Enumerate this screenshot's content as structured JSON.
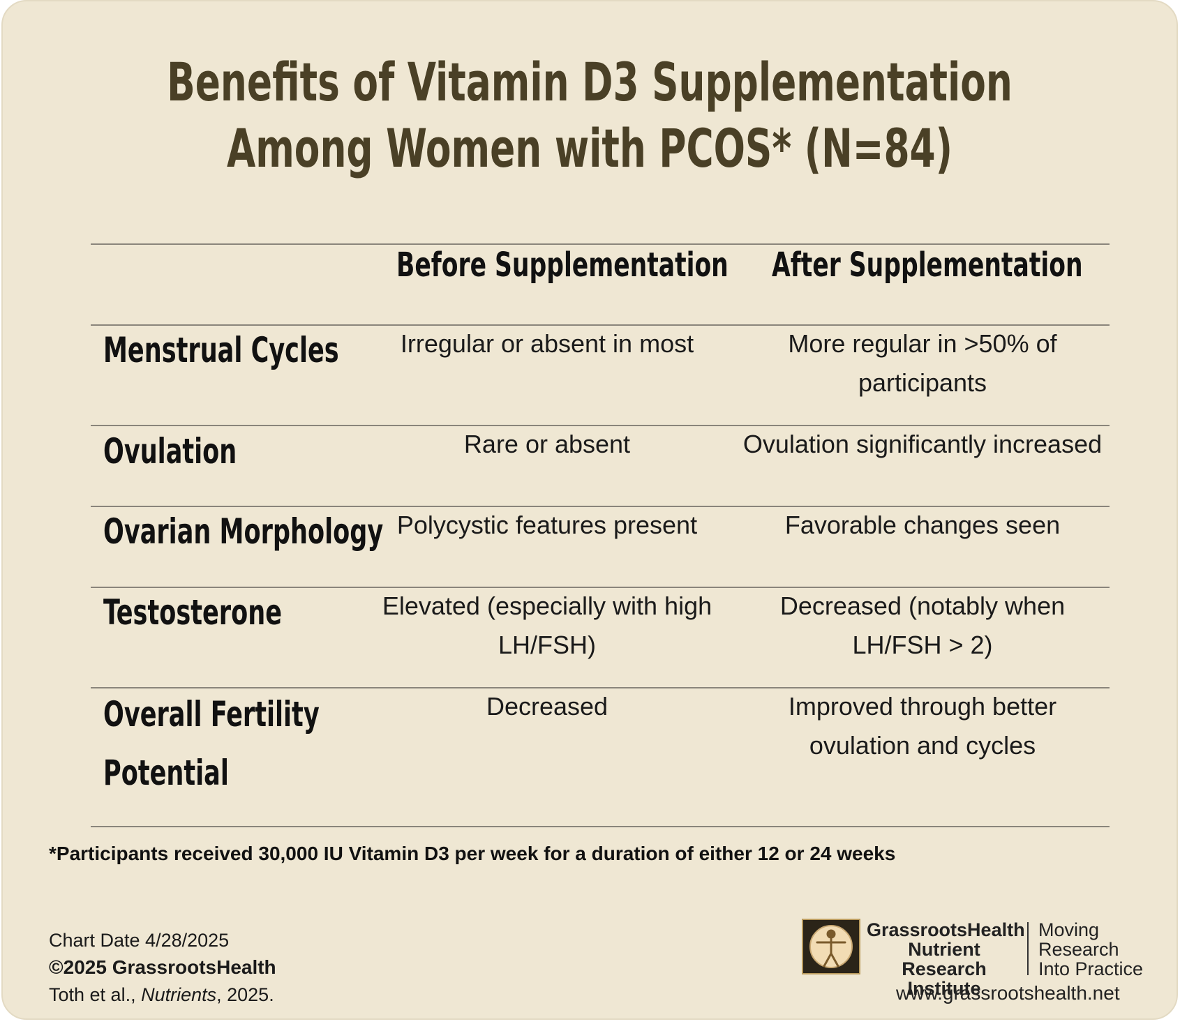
{
  "title": {
    "line1": "Benefits of Vitamin D3 Supplementation",
    "line2": "Among Women with PCOS* (N=84)"
  },
  "table": {
    "columns": [
      "Before Supplementation",
      "After Supplementation"
    ],
    "rows": [
      {
        "label_lines": [
          "Menstrual Cycles"
        ],
        "before_lines": [
          "Irregular or absent in most"
        ],
        "after_lines": [
          "More regular in >50% of",
          "participants"
        ]
      },
      {
        "label_lines": [
          "Ovulation"
        ],
        "before_lines": [
          "Rare or absent"
        ],
        "after_lines": [
          "Ovulation significantly increased"
        ]
      },
      {
        "label_lines": [
          "Ovarian Morphology"
        ],
        "before_lines": [
          "Polycystic features present"
        ],
        "after_lines": [
          "Favorable changes seen"
        ]
      },
      {
        "label_lines": [
          "Testosterone"
        ],
        "before_lines": [
          "Elevated (especially with high",
          "LH/FSH)"
        ],
        "after_lines": [
          "Decreased (notably when",
          "LH/FSH > 2)"
        ]
      },
      {
        "label_lines": [
          "Overall Fertility",
          "Potential"
        ],
        "before_lines": [
          "Decreased"
        ],
        "after_lines": [
          "Improved through better",
          "ovulation and cycles"
        ]
      }
    ]
  },
  "footnote": "*Participants received 30,000 IU Vitamin D3 per week for a duration of either 12 or 24 weeks",
  "meta": {
    "chart_date": "Chart Date 4/28/2025",
    "copyright": "©2025 GrassrootsHealth",
    "citation_authors": "Toth et al., ",
    "citation_journal": "Nutrients",
    "citation_year": ", 2025."
  },
  "branding": {
    "org_line1": "GrassrootsHealth",
    "org_line2": "Nutrient",
    "org_line3": "Research Institute",
    "tag_line1": "Moving",
    "tag_line2": "Research",
    "tag_line3": "Into Practice",
    "url": "www.grassrootshealth.net",
    "logo_icon": "vitruvian-man-icon"
  }
}
